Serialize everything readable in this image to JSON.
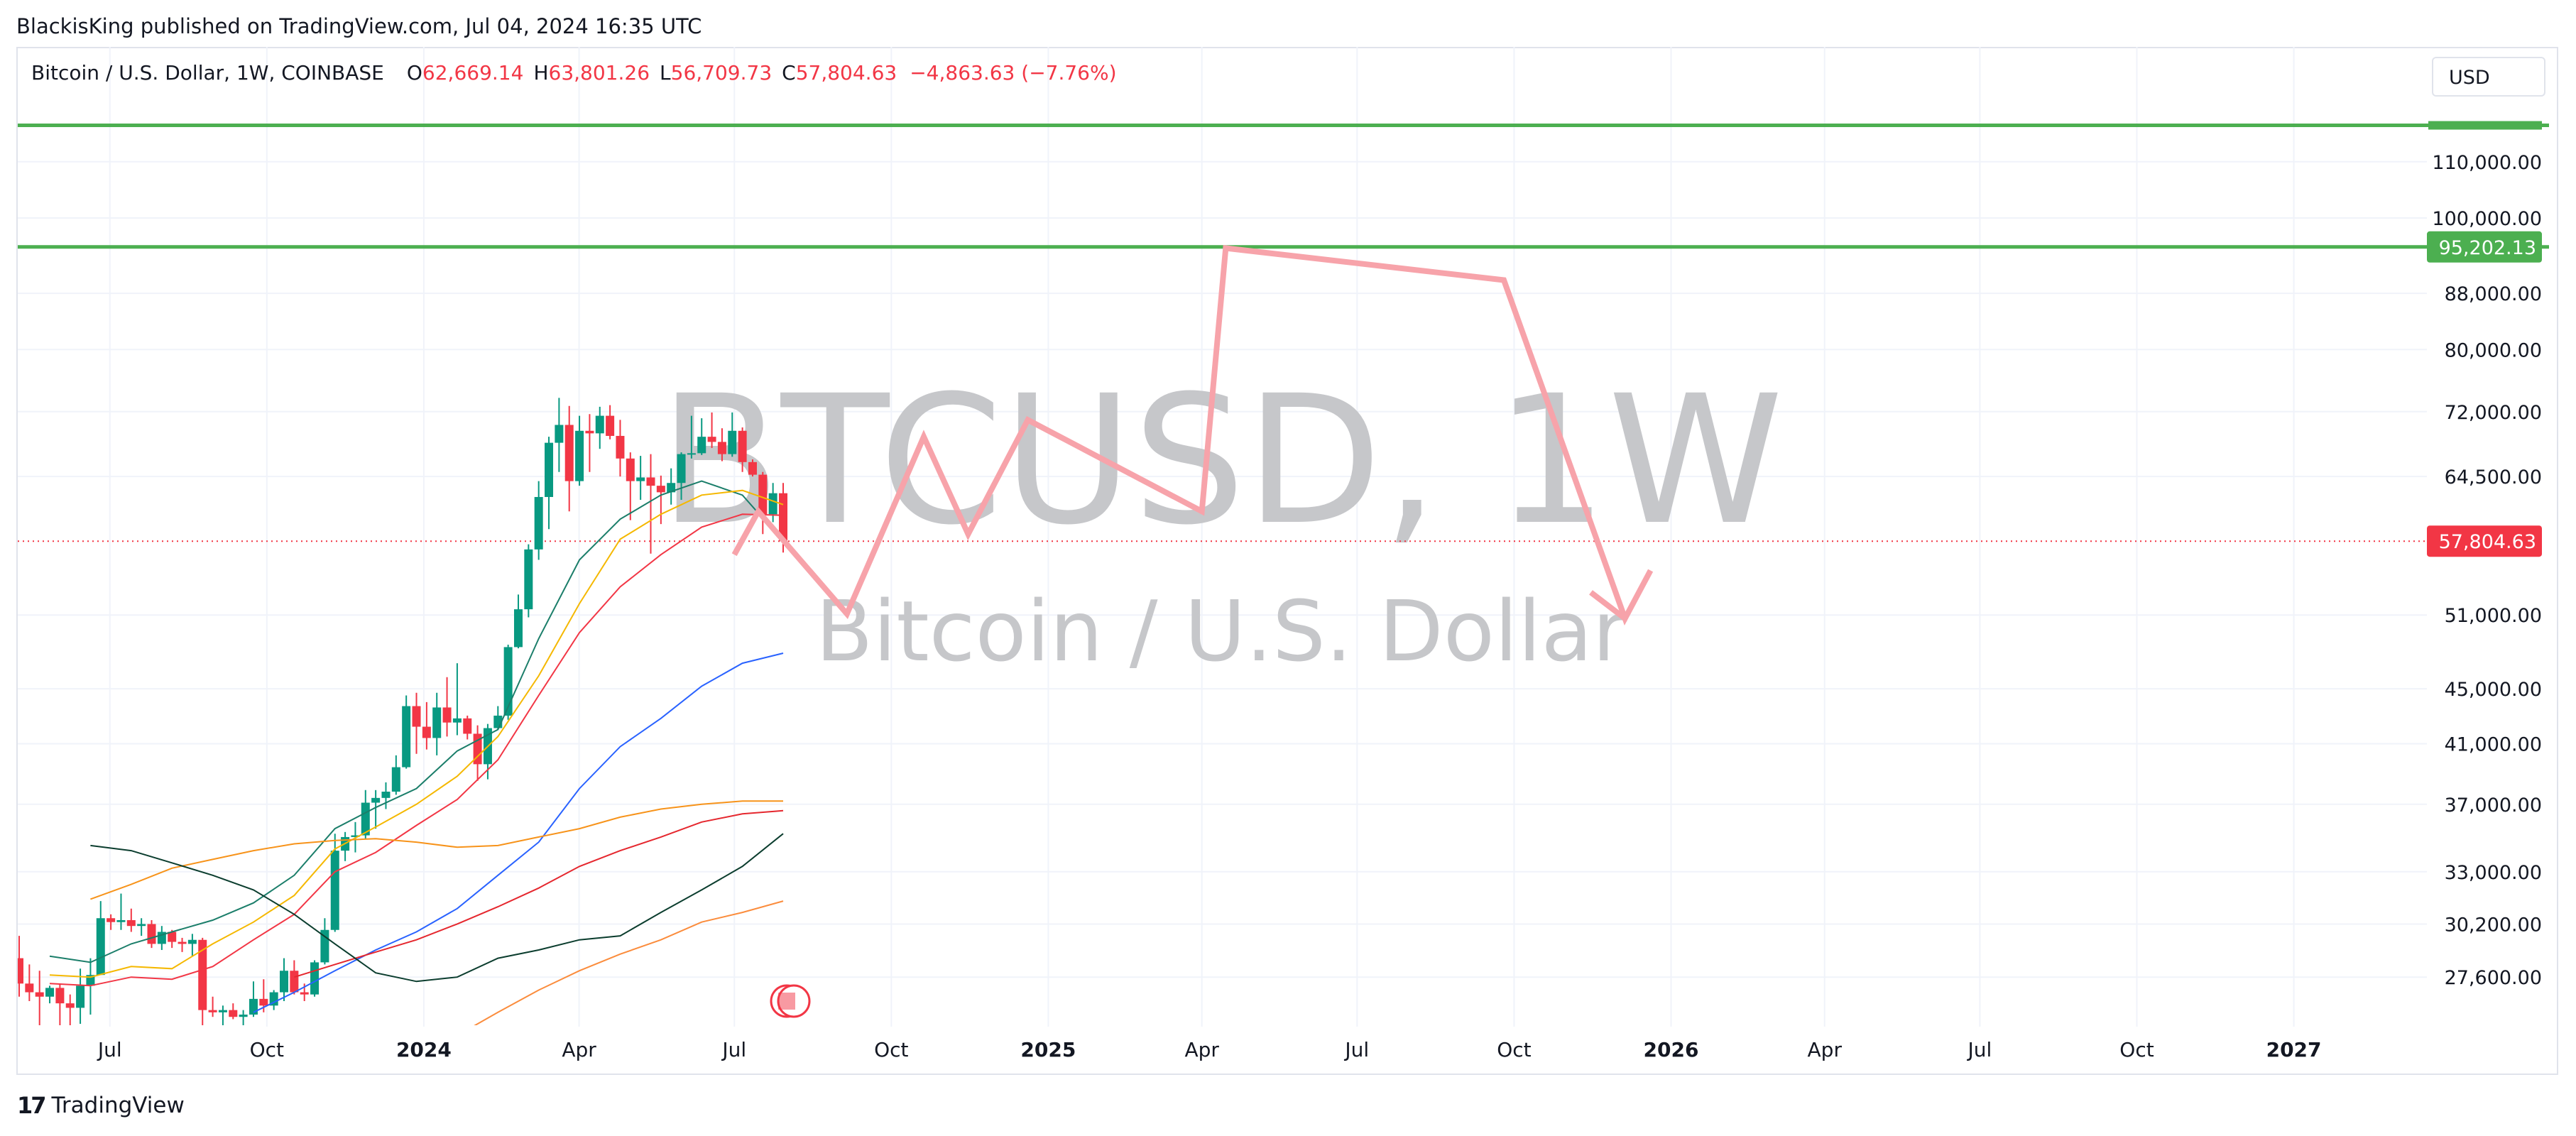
{
  "header": {
    "publish_text": "BlackisKing published on TradingView.com, Jul 04, 2024 16:35 UTC"
  },
  "legend": {
    "symbol": "Bitcoin / U.S. Dollar, 1W, COINBASE",
    "open_label": "O",
    "open": "62,669.14",
    "high_label": "H",
    "high": "63,801.26",
    "low_label": "L",
    "low": "56,709.73",
    "close_label": "C",
    "close": "57,804.63",
    "change": "−4,863.63 (−7.76%)"
  },
  "currency_button": "USD",
  "watermark": {
    "ticker": "BTCUSD, 1W",
    "name": "Bitcoin / U.S. Dollar"
  },
  "brand": {
    "logo": "17",
    "name": "TradingView"
  },
  "colors": {
    "up": "#089981",
    "down": "#f23645",
    "grid": "#f0f3fa",
    "axis_text": "#131722",
    "level": "#4caf50",
    "projection": "#f7a3aa",
    "watermark": "#c6c7ca"
  },
  "chart_data": {
    "type": "candlestick",
    "scale": "log",
    "ylim": [
      26500,
      123000
    ],
    "y_ticks": [
      {
        "value": 110000,
        "label": "110,000.00"
      },
      {
        "value": 100000,
        "label": "100,000.00"
      },
      {
        "value": 88000,
        "label": "88,000.00"
      },
      {
        "value": 80000,
        "label": "80,000.00"
      },
      {
        "value": 72000,
        "label": "72,000.00"
      },
      {
        "value": 64500,
        "label": "64,500.00"
      },
      {
        "value": 51000,
        "label": "51,000.00"
      },
      {
        "value": 45000,
        "label": "45,000.00"
      },
      {
        "value": 41000,
        "label": "41,000.00"
      },
      {
        "value": 37000,
        "label": "37,000.00"
      },
      {
        "value": 33000,
        "label": "33,000.00"
      },
      {
        "value": 30200,
        "label": "30,200.00"
      },
      {
        "value": 27600,
        "label": "27,600.00"
      }
    ],
    "x_range": [
      "2023-05-08",
      "2027-03-20"
    ],
    "x_ticks": [
      {
        "date": "2023-07-01",
        "label": "Jul",
        "bold": false
      },
      {
        "date": "2023-10-01",
        "label": "Oct",
        "bold": false
      },
      {
        "date": "2024-01-01",
        "label": "2024",
        "bold": true
      },
      {
        "date": "2024-04-01",
        "label": "Apr",
        "bold": false
      },
      {
        "date": "2024-07-01",
        "label": "Jul",
        "bold": false
      },
      {
        "date": "2024-10-01",
        "label": "Oct",
        "bold": false
      },
      {
        "date": "2025-01-01",
        "label": "2025",
        "bold": true
      },
      {
        "date": "2025-04-01",
        "label": "Apr",
        "bold": false
      },
      {
        "date": "2025-07-01",
        "label": "Jul",
        "bold": false
      },
      {
        "date": "2025-10-01",
        "label": "Oct",
        "bold": false
      },
      {
        "date": "2026-01-01",
        "label": "2026",
        "bold": true
      },
      {
        "date": "2026-04-01",
        "label": "Apr",
        "bold": false
      },
      {
        "date": "2026-07-01",
        "label": "Jul",
        "bold": false
      },
      {
        "date": "2026-10-01",
        "label": "Oct",
        "bold": false
      },
      {
        "date": "2027-01-01",
        "label": "2027",
        "bold": true
      }
    ],
    "price_label": {
      "value": 57804.63,
      "label": "57,804.63"
    },
    "horizontal_levels": [
      {
        "value": 117000,
        "label": ""
      },
      {
        "value": 95202.13,
        "label": "95,202.13"
      }
    ],
    "candles_ohlc": [
      [
        28500,
        29600,
        26700,
        27300
      ],
      [
        27300,
        28200,
        26500,
        26900
      ],
      [
        26900,
        27900,
        25400,
        26700
      ],
      [
        26700,
        27200,
        26400,
        27100
      ],
      [
        27100,
        27300,
        25300,
        26400
      ],
      [
        26400,
        26800,
        25400,
        26200
      ],
      [
        26200,
        28000,
        25500,
        27200
      ],
      [
        27200,
        28500,
        25900,
        27700
      ],
      [
        27700,
        31400,
        27700,
        30500
      ],
      [
        30500,
        30700,
        29900,
        30300
      ],
      [
        30300,
        31800,
        29900,
        30400
      ],
      [
        30400,
        31000,
        29800,
        30100
      ],
      [
        30100,
        30500,
        29600,
        30200
      ],
      [
        30200,
        30400,
        29000,
        29200
      ],
      [
        29200,
        30100,
        28900,
        29800
      ],
      [
        29800,
        29900,
        29000,
        29300
      ],
      [
        29300,
        29500,
        28800,
        29200
      ],
      [
        29200,
        29700,
        28600,
        29400
      ],
      [
        29400,
        29500,
        25200,
        26100
      ],
      [
        26100,
        26700,
        25800,
        26000
      ],
      [
        26000,
        26300,
        25400,
        26100
      ],
      [
        26100,
        26400,
        25700,
        25800
      ],
      [
        25800,
        26100,
        24900,
        25900
      ],
      [
        25900,
        27400,
        25800,
        26600
      ],
      [
        26600,
        27500,
        26000,
        26300
      ],
      [
        26300,
        27000,
        26100,
        26900
      ],
      [
        26900,
        28500,
        26500,
        27900
      ],
      [
        27900,
        28400,
        26800,
        26900
      ],
      [
        26900,
        27300,
        26500,
        26800
      ],
      [
        26800,
        28400,
        26700,
        28300
      ],
      [
        28300,
        30500,
        28200,
        29900
      ],
      [
        29900,
        35200,
        29800,
        34200
      ],
      [
        34200,
        35300,
        33600,
        35000
      ],
      [
        35000,
        35900,
        34100,
        35100
      ],
      [
        35100,
        37900,
        34900,
        37100
      ],
      [
        37100,
        37900,
        35500,
        37400
      ],
      [
        37400,
        38400,
        36700,
        37800
      ],
      [
        37800,
        40200,
        37600,
        39400
      ],
      [
        39400,
        44500,
        39300,
        43700
      ],
      [
        43700,
        44700,
        40300,
        42200
      ],
      [
        42200,
        44000,
        40600,
        41400
      ],
      [
        41400,
        44700,
        40200,
        43600
      ],
      [
        43600,
        45900,
        41500,
        42500
      ],
      [
        42500,
        47000,
        41600,
        42800
      ],
      [
        42800,
        43000,
        41300,
        41700
      ],
      [
        41700,
        42300,
        38500,
        39600
      ],
      [
        39600,
        42400,
        38600,
        42100
      ],
      [
        42100,
        43700,
        42000,
        43000
      ],
      [
        43000,
        48500,
        42700,
        48300
      ],
      [
        48300,
        52800,
        48200,
        51500
      ],
      [
        51500,
        57500,
        50800,
        57000
      ],
      [
        57000,
        64000,
        56000,
        62300
      ],
      [
        62300,
        69000,
        59000,
        68300
      ],
      [
        68300,
        73700,
        65000,
        70400
      ],
      [
        70400,
        72700,
        60800,
        64000
      ],
      [
        64000,
        71500,
        63500,
        69700
      ],
      [
        69700,
        71700,
        65000,
        69400
      ],
      [
        69400,
        72600,
        67600,
        71500
      ],
      [
        71500,
        72800,
        68700,
        69100
      ],
      [
        69100,
        71000,
        64500,
        66500
      ],
      [
        66500,
        67200,
        59900,
        64000
      ],
      [
        64000,
        66800,
        62000,
        64400
      ],
      [
        64400,
        67000,
        56600,
        63500
      ],
      [
        63500,
        64600,
        59500,
        62800
      ],
      [
        62800,
        65400,
        61500,
        63800
      ],
      [
        63800,
        67200,
        62000,
        67000
      ],
      [
        67000,
        71500,
        66500,
        67100
      ],
      [
        67100,
        71200,
        66900,
        69000
      ],
      [
        69000,
        71900,
        67700,
        68400
      ],
      [
        68400,
        70000,
        66200,
        67000
      ],
      [
        67000,
        71900,
        66700,
        69700
      ],
      [
        69700,
        70100,
        65000,
        66100
      ],
      [
        66100,
        66400,
        64500,
        64700
      ],
      [
        64700,
        65000,
        58500,
        60500
      ],
      [
        60500,
        63800,
        59700,
        62700
      ],
      [
        62700,
        63800,
        56700,
        57800
      ]
    ],
    "moving_averages": [
      {
        "color": "#1b7e6a",
        "width": 2,
        "points": [
          [
            26900,
            28600
          ],
          [
            27600,
            28300
          ],
          [
            27200,
            29200
          ],
          [
            30800,
            29800
          ],
          [
            34000,
            30400
          ],
          [
            36200,
            31300
          ],
          [
            37900,
            32800
          ],
          [
            41000,
            35500
          ],
          [
            41800,
            36800
          ],
          [
            41000,
            38000
          ],
          [
            42800,
            40500
          ],
          [
            50000,
            42000
          ],
          [
            62000,
            49000
          ],
          [
            66000,
            56000
          ],
          [
            68000,
            60000
          ],
          [
            66000,
            62500
          ],
          [
            69000,
            64000
          ],
          [
            64000,
            62500
          ],
          [
            63400,
            57800
          ]
        ]
      },
      {
        "color": "#f5b800",
        "width": 2,
        "points": [
          [
            26900,
            27700
          ],
          [
            27600,
            27600
          ],
          [
            27200,
            28100
          ],
          [
            30800,
            28000
          ],
          [
            34000,
            29200
          ],
          [
            36200,
            30300
          ],
          [
            37900,
            31700
          ],
          [
            41000,
            34300
          ],
          [
            41800,
            35600
          ],
          [
            41000,
            37000
          ],
          [
            42800,
            38800
          ],
          [
            50000,
            41500
          ],
          [
            62000,
            46000
          ],
          [
            66000,
            52000
          ],
          [
            68000,
            58000
          ],
          [
            66000,
            60500
          ],
          [
            69000,
            62500
          ],
          [
            64000,
            63000
          ],
          [
            63400,
            61500
          ]
        ]
      },
      {
        "color": "#f23645",
        "width": 2,
        "points": [
          [
            26900,
            27300
          ],
          [
            27600,
            27200
          ],
          [
            27200,
            27600
          ],
          [
            30800,
            27500
          ],
          [
            34000,
            28100
          ],
          [
            36200,
            29400
          ],
          [
            37900,
            30700
          ],
          [
            41000,
            33000
          ],
          [
            41800,
            34100
          ],
          [
            41000,
            35700
          ],
          [
            42800,
            37300
          ],
          [
            50000,
            39900
          ],
          [
            62000,
            44500
          ],
          [
            66000,
            49500
          ],
          [
            68000,
            53500
          ],
          [
            66000,
            56500
          ],
          [
            69000,
            59200
          ],
          [
            64000,
            60500
          ],
          [
            63400,
            60400
          ]
        ]
      },
      {
        "color": "#2962ff",
        "width": 2,
        "points": [
          [
            30800,
            26000
          ],
          [
            34000,
            26900
          ],
          [
            36200,
            27900
          ],
          [
            37900,
            28900
          ],
          [
            41000,
            29800
          ],
          [
            41800,
            31000
          ],
          [
            42800,
            32800
          ],
          [
            50000,
            34700
          ],
          [
            62000,
            38000
          ],
          [
            66000,
            40800
          ],
          [
            68000,
            42800
          ],
          [
            66000,
            45200
          ],
          [
            69000,
            47000
          ],
          [
            63400,
            47800
          ]
        ]
      },
      {
        "color": "#f7931a",
        "width": 2,
        "points": [
          [
            26900,
            31500
          ],
          [
            27600,
            32300
          ],
          [
            27200,
            33200
          ],
          [
            30800,
            33700
          ],
          [
            34000,
            34200
          ],
          [
            36200,
            34600
          ],
          [
            37900,
            34800
          ],
          [
            41000,
            34900
          ],
          [
            41800,
            34700
          ],
          [
            41000,
            34400
          ],
          [
            42800,
            34500
          ],
          [
            50000,
            35000
          ],
          [
            62000,
            35500
          ],
          [
            66000,
            36200
          ],
          [
            68000,
            36700
          ],
          [
            66000,
            37000
          ],
          [
            69000,
            37200
          ],
          [
            63400,
            37200
          ]
        ]
      },
      {
        "color": "#e5272e",
        "width": 2,
        "points": [
          [
            34000,
            27600
          ],
          [
            36200,
            28200
          ],
          [
            37900,
            28800
          ],
          [
            41000,
            29400
          ],
          [
            41800,
            30200
          ],
          [
            42800,
            31100
          ],
          [
            50000,
            32100
          ],
          [
            62000,
            33300
          ],
          [
            66000,
            34200
          ],
          [
            68000,
            35000
          ],
          [
            66000,
            35900
          ],
          [
            69000,
            36400
          ],
          [
            63400,
            36600
          ]
        ]
      },
      {
        "color": "#0b3d2e",
        "width": 2,
        "points": [
          [
            26900,
            34500
          ],
          [
            27600,
            34200
          ],
          [
            27200,
            33500
          ],
          [
            30800,
            32800
          ],
          [
            34000,
            32000
          ],
          [
            36200,
            30700
          ],
          [
            37900,
            29200
          ],
          [
            41000,
            27800
          ],
          [
            41800,
            27400
          ],
          [
            41000,
            27600
          ],
          [
            42800,
            28500
          ],
          [
            50000,
            28900
          ],
          [
            62000,
            29400
          ],
          [
            66000,
            29600
          ],
          [
            68000,
            30800
          ],
          [
            66000,
            32000
          ],
          [
            69000,
            33300
          ],
          [
            63400,
            35200
          ]
        ]
      },
      {
        "color": "#fb8c3c",
        "width": 2,
        "points": [
          [
            41000,
            25000
          ],
          [
            42800,
            26000
          ],
          [
            50000,
            27000
          ],
          [
            62000,
            27900
          ],
          [
            66000,
            28700
          ],
          [
            68000,
            29400
          ],
          [
            66000,
            30300
          ],
          [
            69000,
            30800
          ],
          [
            63400,
            31400
          ]
        ]
      }
    ],
    "projection_path": [
      {
        "date": "2024-07-01",
        "value": 56500
      },
      {
        "date": "2024-07-15",
        "value": 60800
      },
      {
        "date": "2024-09-05",
        "value": 51100
      },
      {
        "date": "2024-10-20",
        "value": 69000
      },
      {
        "date": "2024-11-15",
        "value": 58500
      },
      {
        "date": "2024-12-20",
        "value": 71000
      },
      {
        "date": "2025-04-01",
        "value": 60800
      },
      {
        "date": "2025-04-15",
        "value": 95000
      },
      {
        "date": "2025-09-25",
        "value": 90000
      },
      {
        "date": "2025-12-05",
        "value": 50700
      },
      {
        "date": "2025-12-20",
        "value": 55000
      }
    ],
    "projection_tail": [
      {
        "date": "2025-11-15",
        "value": 53000
      },
      {
        "date": "2025-12-05",
        "value": 50700
      }
    ]
  }
}
